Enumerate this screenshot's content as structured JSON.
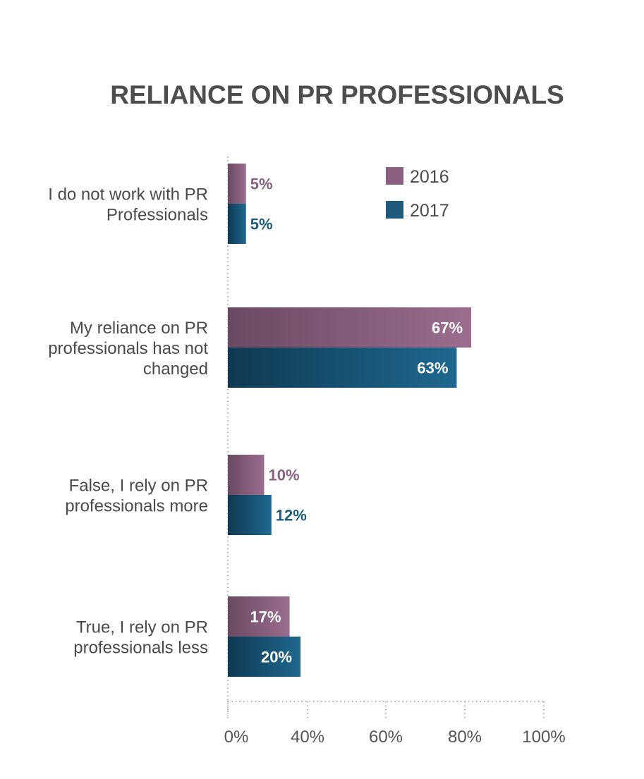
{
  "chart_data": {
    "type": "bar",
    "orientation": "horizontal",
    "title": "RELIANCE ON PR PROFESSIONALS",
    "categories": [
      [
        "I do not work with PR",
        "Professionals"
      ],
      [
        "My reliance on PR",
        "professionals has not",
        "changed"
      ],
      [
        "False, I rely on PR",
        "professionals more"
      ],
      [
        "True, I rely on PR",
        "professionals less"
      ]
    ],
    "series": [
      {
        "name": "2016",
        "values": [
          5,
          67,
          10,
          17
        ],
        "labels": [
          "5%",
          "67%",
          "10%",
          "17%"
        ],
        "color": "#8a5f7f"
      },
      {
        "name": "2017",
        "values": [
          5,
          63,
          12,
          20
        ],
        "labels": [
          "5%",
          "63%",
          "12%",
          "20%"
        ],
        "color": "#1d5a7d"
      }
    ],
    "x_ticks": [
      "0%",
      "40%",
      "60%",
      "80%",
      "100%"
    ],
    "legend_position": "top-right",
    "grid": false
  }
}
